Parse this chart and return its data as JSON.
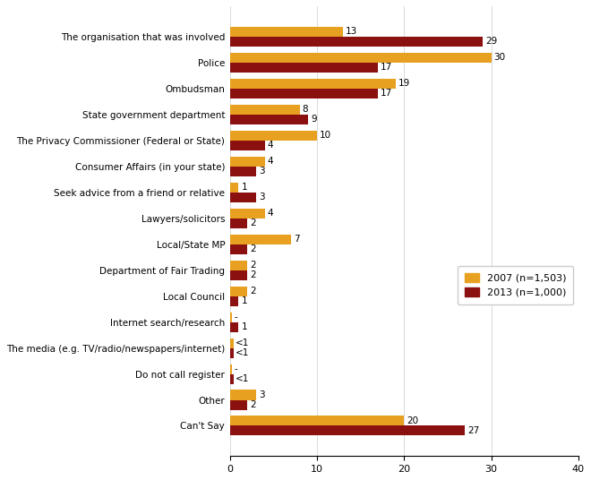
{
  "categories": [
    "The organisation that was involved",
    "Police",
    "Ombudsman",
    "State government department",
    "The Privacy Commissioner (Federal or State)",
    "Consumer Affairs (in your state)",
    "Seek advice from a friend or relative",
    "Lawyers/solicitors",
    "Local/State MP",
    "Department of Fair Trading",
    "Local Council",
    "Internet search/research",
    "The media (e.g. TV/radio/newspapers/internet)",
    "Do not call register",
    "Other",
    "Can't Say"
  ],
  "values_2007": [
    13,
    30,
    19,
    8,
    10,
    4,
    1,
    4,
    7,
    2,
    2,
    0.2,
    0.4,
    0.2,
    3,
    20
  ],
  "values_2013": [
    29,
    17,
    17,
    9,
    4,
    3,
    3,
    2,
    2,
    2,
    1,
    1,
    0.4,
    0.4,
    2,
    27
  ],
  "labels_2007": [
    "13",
    "30",
    "19",
    "8",
    "10",
    "4",
    "1",
    "4",
    "7",
    "2",
    "2",
    "-",
    "<1",
    "-",
    "3",
    "20"
  ],
  "labels_2013": [
    "29",
    "17",
    "17",
    "9",
    "4",
    "3",
    "3",
    "2",
    "2",
    "2",
    "1",
    "1",
    "<1",
    "<1",
    "2",
    "27"
  ],
  "color_2007": "#E8A020",
  "color_2013": "#8B1010",
  "xlim": [
    0,
    40
  ],
  "legend_2007": "2007 (n=1,503)",
  "legend_2013": "2013 (n=1,000)",
  "bar_height": 0.38,
  "label_fontsize": 7.5,
  "tick_fontsize": 8,
  "category_fontsize": 7.5
}
